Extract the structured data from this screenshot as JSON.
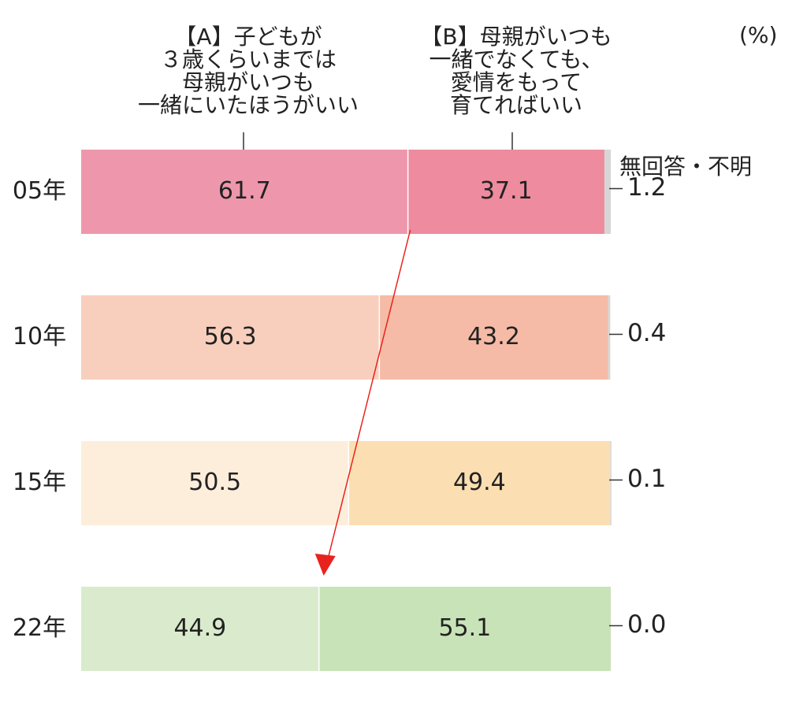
{
  "chart_data": {
    "type": "bar",
    "orientation": "horizontal",
    "stacked": true,
    "unit": "(%)",
    "categories": [
      "05年",
      "10年",
      "15年",
      "22年"
    ],
    "series": [
      {
        "name": "【A】子どもが\n３歳くらいまでは\n母親がいつも\n一緒にいたほうがいい",
        "values": [
          61.7,
          56.3,
          50.5,
          44.9
        ],
        "colors": [
          "#ee97ac",
          "#f8cfbd",
          "#fdeedc",
          "#d9ebcc"
        ]
      },
      {
        "name": "【B】母親がいつも\n一緒でなくても、\n愛情をもって\n育てればいい",
        "values": [
          37.1,
          43.2,
          49.4,
          55.1
        ],
        "colors": [
          "#ee8b9e",
          "#f5bba6",
          "#fbdfb2",
          "#c9e3b8"
        ]
      },
      {
        "name": "無回答・不明",
        "values": [
          1.2,
          0.4,
          0.1,
          0.0
        ],
        "colors": [
          "#d6d6d6",
          "#d6d6d6",
          "#d6d6d6",
          "#d6d6d6"
        ]
      }
    ],
    "value_labels": {
      "A": [
        "61.7",
        "56.3",
        "50.5",
        "44.9"
      ],
      "B": [
        "37.1",
        "43.2",
        "49.4",
        "55.1"
      ],
      "NR": [
        "1.2",
        "0.4",
        "0.1",
        "0.0"
      ]
    },
    "xlim": [
      0,
      100
    ],
    "annotation": "red arrow from the 05年 A/B boundary down to the 22年 A/B boundary",
    "annotation_color": "#e8231e",
    "grid": false,
    "legend": "top"
  }
}
